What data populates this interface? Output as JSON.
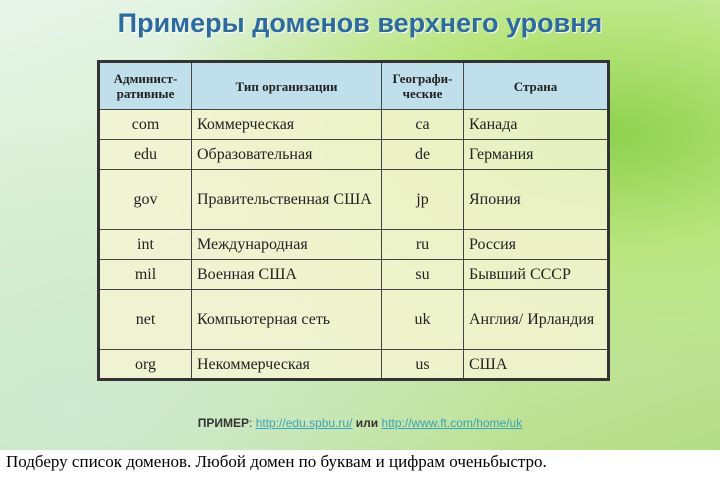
{
  "title": "Примеры доменов верхнего уровня",
  "table": {
    "headers": [
      "Админист-ративные",
      "Тип организации",
      "Географи-ческие",
      "Страна"
    ],
    "rows": [
      [
        "com",
        "Коммерческая",
        "ca",
        "Канада"
      ],
      [
        "edu",
        "Образовательная",
        "de",
        "Германия"
      ],
      [
        "gov",
        "Правительственная США",
        "jp",
        "Япония"
      ],
      [
        "int",
        "Международная",
        "ru",
        "Россия"
      ],
      [
        "mil",
        "Военная США",
        "su",
        "Бывший СССР"
      ],
      [
        "net",
        "Компьютерная сеть",
        "uk",
        "Англия/ Ирландия"
      ],
      [
        "org",
        "Некоммерческая",
        "us",
        "США"
      ]
    ]
  },
  "example": {
    "label": "ПРИМЕР",
    "sep": ":",
    "link1": "http://edu.spbu.ru/",
    "or": "или",
    "link2": "http://www.ft.com/home/uk"
  },
  "caption": "Подберу список доменов. Любой домен по буквам и цифрам оченьбыстро.",
  "colors": {
    "title": "#2d6b9e",
    "header_bg": "#bfe0ea",
    "link": "#3aa6b8"
  }
}
